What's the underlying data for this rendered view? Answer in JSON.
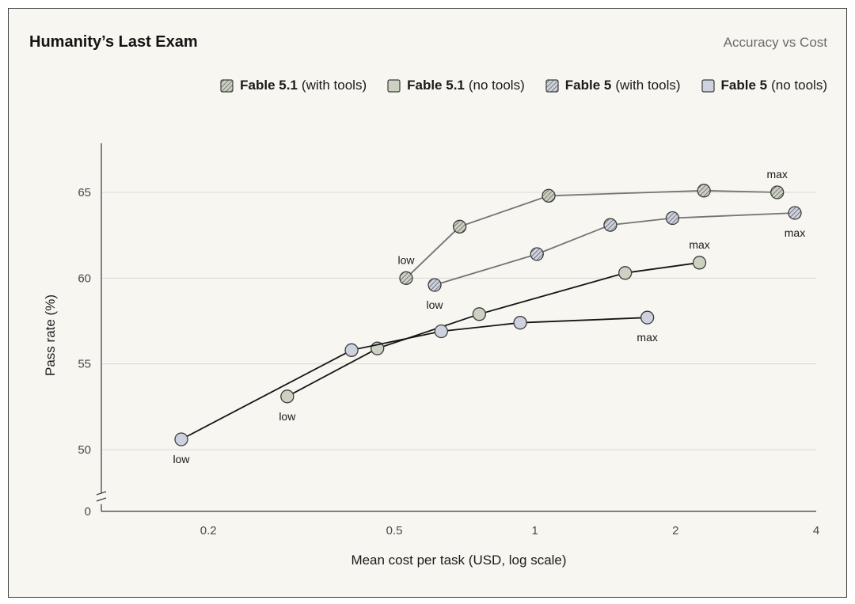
{
  "header": {
    "title": "Humanity’s Last Exam",
    "subtitle": "Accuracy vs Cost"
  },
  "colors": {
    "with_tools_line": "#747474",
    "no_tools_line": "#151515",
    "fable51_fill": "#cdd1c1",
    "fable5_fill": "#cdd2de",
    "grid": "#d9d9d6",
    "axis": "#3a3a3a",
    "tick_text": "#4a4a4a"
  },
  "chart_data": {
    "type": "line",
    "title": "Humanity’s Last Exam",
    "subtitle": "Accuracy vs Cost",
    "xlabel": "Mean cost per task (USD, log scale)",
    "ylabel": "Pass rate (%)",
    "x_scale": "log",
    "xlim": [
      0.118,
      4.0
    ],
    "ylim_broken": {
      "upper": [
        47,
        68
      ],
      "lower_tick": 0
    },
    "x_ticks": [
      {
        "value": 0.2,
        "label": "0.2"
      },
      {
        "value": 0.5,
        "label": "0.5"
      },
      {
        "value": 1,
        "label": "1"
      },
      {
        "value": 2,
        "label": "2"
      },
      {
        "value": 4,
        "label": "4"
      }
    ],
    "y_ticks": [
      {
        "value": 50,
        "label": "50"
      },
      {
        "value": 55,
        "label": "55"
      },
      {
        "value": 60,
        "label": "60"
      },
      {
        "value": 65,
        "label": "65"
      }
    ],
    "y_zero_label": "0",
    "grid": "horizontal",
    "legend_position": "top-right",
    "series": [
      {
        "id": "f51_tools",
        "name": "Fable 5.1",
        "qualifier": "(with tools)",
        "marker": "hatched",
        "fill": "#cdd1c1",
        "line_color": "#747474",
        "points": [
          {
            "x": 0.53,
            "y": 60.0
          },
          {
            "x": 0.69,
            "y": 63.0
          },
          {
            "x": 1.07,
            "y": 64.8
          },
          {
            "x": 2.3,
            "y": 65.1
          },
          {
            "x": 3.3,
            "y": 65.0
          }
        ],
        "annotations": [
          {
            "point": 0,
            "text": "low",
            "pos": "above"
          },
          {
            "point": 4,
            "text": "max",
            "pos": "above"
          }
        ]
      },
      {
        "id": "f5_tools",
        "name": "Fable 5",
        "qualifier": "(with tools)",
        "marker": "hatched",
        "fill": "#cdd2de",
        "line_color": "#747474",
        "points": [
          {
            "x": 0.61,
            "y": 59.6
          },
          {
            "x": 1.01,
            "y": 61.4
          },
          {
            "x": 1.45,
            "y": 63.1
          },
          {
            "x": 1.97,
            "y": 63.5
          },
          {
            "x": 3.6,
            "y": 63.8
          }
        ],
        "annotations": [
          {
            "point": 0,
            "text": "low",
            "pos": "below"
          },
          {
            "point": 4,
            "text": "max",
            "pos": "below"
          }
        ]
      },
      {
        "id": "f51_notools",
        "name": "Fable 5.1",
        "qualifier": "(no tools)",
        "marker": "solid",
        "fill": "#cdd1c1",
        "line_color": "#151515",
        "points": [
          {
            "x": 0.295,
            "y": 53.1
          },
          {
            "x": 0.46,
            "y": 55.9
          },
          {
            "x": 0.76,
            "y": 57.9
          },
          {
            "x": 1.56,
            "y": 60.3
          },
          {
            "x": 2.25,
            "y": 60.9
          }
        ],
        "annotations": [
          {
            "point": 0,
            "text": "low",
            "pos": "below"
          },
          {
            "point": 4,
            "text": "max",
            "pos": "above"
          }
        ]
      },
      {
        "id": "f5_notools",
        "name": "Fable 5",
        "qualifier": "(no tools)",
        "marker": "solid",
        "fill": "#cdd2de",
        "line_color": "#151515",
        "points": [
          {
            "x": 0.175,
            "y": 50.6
          },
          {
            "x": 0.405,
            "y": 55.8
          },
          {
            "x": 0.63,
            "y": 56.9
          },
          {
            "x": 0.93,
            "y": 57.4
          },
          {
            "x": 1.74,
            "y": 57.7
          }
        ],
        "annotations": [
          {
            "point": 0,
            "text": "low",
            "pos": "below"
          },
          {
            "point": 4,
            "text": "max",
            "pos": "below"
          }
        ]
      }
    ],
    "legend_order": [
      "f51_tools",
      "f51_notools",
      "f5_tools",
      "f5_notools"
    ]
  }
}
